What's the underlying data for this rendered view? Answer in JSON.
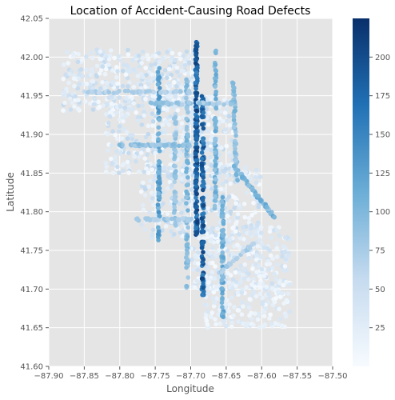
{
  "chart_data": {
    "type": "scatter",
    "title": "Location of Accident-Causing Road Defects",
    "xlabel": "Longitude",
    "ylabel": "Latitude",
    "xlim": [
      -87.9,
      -87.5
    ],
    "ylim": [
      41.6,
      42.05
    ],
    "xticks": [
      -87.9,
      -87.85,
      -87.8,
      -87.75,
      -87.7,
      -87.65,
      -87.6,
      -87.55,
      -87.5
    ],
    "xtick_labels": [
      "−87.90",
      "−87.85",
      "−87.80",
      "−87.75",
      "−87.70",
      "−87.65",
      "−87.60",
      "−87.55",
      "−87.50"
    ],
    "yticks": [
      41.6,
      41.65,
      41.7,
      41.75,
      41.8,
      41.85,
      41.9,
      41.95,
      42.0,
      42.05
    ],
    "ytick_labels": [
      "41.60",
      "41.65",
      "41.70",
      "41.75",
      "41.80",
      "41.85",
      "41.90",
      "41.95",
      "42.00",
      "42.05"
    ],
    "grid": true,
    "colormap": "Blues",
    "colorbar": {
      "range": [
        0,
        225
      ],
      "ticks": [
        25,
        50,
        75,
        100,
        125,
        150,
        175,
        200
      ],
      "tick_labels": [
        "25",
        "50",
        "75",
        "100",
        "125",
        "150",
        "175",
        "200"
      ]
    },
    "colors": {
      "background": "#e5e5e5",
      "grid": "#ffffff",
      "low": "#f7fbff",
      "high": "#08306b"
    },
    "regions": [
      {
        "lon": [
          -87.88,
          -87.69
        ],
        "lat": [
          41.93,
          42.01
        ],
        "n": 380,
        "value_range": [
          2,
          60
        ]
      },
      {
        "lon": [
          -87.82,
          -87.64
        ],
        "lat": [
          41.85,
          41.95
        ],
        "n": 380,
        "value_range": [
          2,
          60
        ]
      },
      {
        "lon": [
          -87.77,
          -87.6
        ],
        "lat": [
          41.76,
          41.86
        ],
        "n": 320,
        "value_range": [
          2,
          60
        ]
      },
      {
        "lon": [
          -87.7,
          -87.56
        ],
        "lat": [
          41.7,
          41.78
        ],
        "n": 260,
        "value_range": [
          2,
          50
        ]
      },
      {
        "lon": [
          -87.68,
          -87.56
        ],
        "lat": [
          41.65,
          41.71
        ],
        "n": 170,
        "value_range": [
          2,
          40
        ]
      }
    ],
    "line_segments": [
      {
        "lon": [
          -87.692,
          -87.692
        ],
        "lat": [
          41.77,
          42.02
        ],
        "value": 215,
        "n": 160
      },
      {
        "lon": [
          -87.683,
          -87.683
        ],
        "lat": [
          41.69,
          41.95
        ],
        "value": 210,
        "n": 120
      },
      {
        "lon": [
          -87.745,
          -87.745
        ],
        "lat": [
          41.76,
          41.99
        ],
        "value": 140,
        "n": 80
      },
      {
        "lon": [
          -87.705,
          -87.705
        ],
        "lat": [
          41.7,
          41.98
        ],
        "value": 110,
        "n": 80
      },
      {
        "lon": [
          -87.665,
          -87.665
        ],
        "lat": [
          41.8,
          42.01
        ],
        "value": 120,
        "n": 70
      },
      {
        "lon": [
          -87.655,
          -87.655
        ],
        "lat": [
          41.66,
          41.82
        ],
        "value": 130,
        "n": 70
      },
      {
        "lon": [
          -87.722,
          -87.722
        ],
        "lat": [
          41.78,
          41.93
        ],
        "value": 100,
        "n": 50
      },
      {
        "lon": [
          -87.635,
          -87.64
        ],
        "lat": [
          41.84,
          41.97
        ],
        "value": 110,
        "n": 55
      },
      {
        "lon": [
          -87.64,
          -87.58
        ],
        "lat": [
          41.86,
          41.79
        ],
        "value": 120,
        "n": 50
      },
      {
        "lon": [
          -87.8,
          -87.7
        ],
        "lat": [
          41.886,
          41.886
        ],
        "value": 100,
        "n": 60
      },
      {
        "lon": [
          -87.78,
          -87.7
        ],
        "lat": [
          41.79,
          41.79
        ],
        "value": 90,
        "n": 45
      },
      {
        "lon": [
          -87.85,
          -87.7
        ],
        "lat": [
          41.955,
          41.955
        ],
        "value": 80,
        "n": 55
      },
      {
        "lon": [
          -87.76,
          -87.64
        ],
        "lat": [
          41.94,
          41.94
        ],
        "value": 95,
        "n": 45
      },
      {
        "lon": [
          -87.66,
          -87.61
        ],
        "lat": [
          41.72,
          41.76
        ],
        "value": 85,
        "n": 30
      }
    ]
  }
}
